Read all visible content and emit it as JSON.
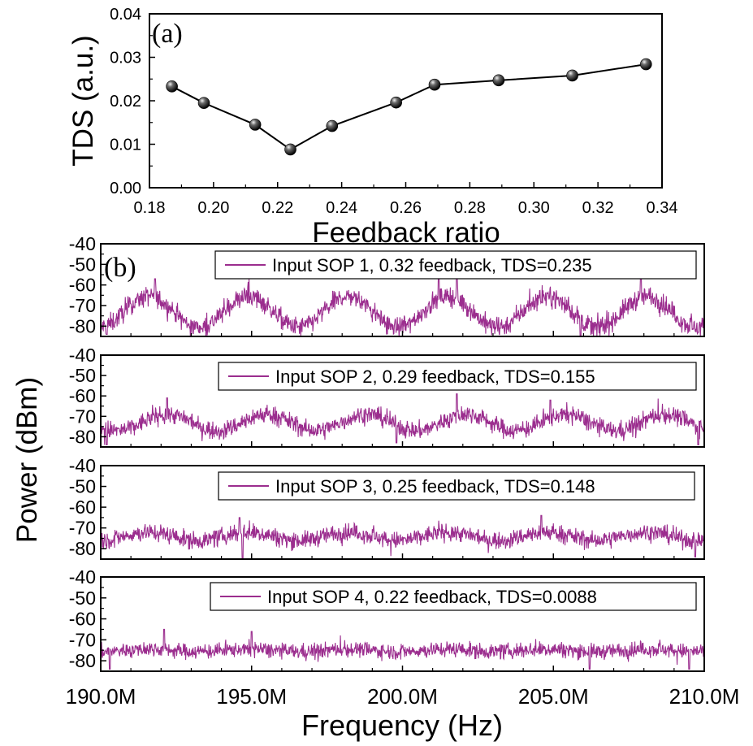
{
  "chart_data": [
    {
      "panel": "(a)",
      "type": "line",
      "xlabel": "Feedback ratio",
      "ylabel": "TDS (a.u.)",
      "xlim": [
        0.18,
        0.34
      ],
      "ylim": [
        0.0,
        0.04
      ],
      "xticks": [
        "0.18",
        "0.20",
        "0.22",
        "0.24",
        "0.26",
        "0.28",
        "0.30",
        "0.32",
        "0.34"
      ],
      "yticks": [
        "0.00",
        "0.01",
        "0.02",
        "0.03",
        "0.04"
      ],
      "marker": "sphere",
      "series": [
        {
          "x": [
            0.187,
            0.197,
            0.213,
            0.224,
            0.237,
            0.257,
            0.269,
            0.289,
            0.312,
            0.335
          ],
          "y": [
            0.0233,
            0.0195,
            0.0145,
            0.0088,
            0.0142,
            0.0196,
            0.0237,
            0.0247,
            0.0258,
            0.0284
          ]
        }
      ]
    },
    {
      "panel": "(b)",
      "type": "line",
      "xlabel": "Frequency (Hz)",
      "ylabel": "Power (dBm)",
      "xlim": [
        190.0,
        210.0
      ],
      "x_unit_suffix": "M",
      "xticks": [
        "190.0M",
        "195.0M",
        "200.0M",
        "205.0M",
        "210.0M"
      ],
      "ylim": [
        -85,
        -40
      ],
      "yticks": [
        "-40",
        "-50",
        "-60",
        "-70",
        "-80"
      ],
      "line_color": "#9b2d8e",
      "subplots": [
        {
          "legend": "Input SOP 1, 0.32 feedback, TDS=0.235",
          "baseline_dbm": -73,
          "ripple_amplitude_db": 7.5,
          "ripple_period_mhz": 3.3,
          "ripple_phase_mhz": 191.6,
          "noise_db": 3.5,
          "notable_peaks": [
            [
              191.8,
              -57
            ],
            [
              201.2,
              -56
            ],
            [
              201.8,
              -56
            ],
            [
              207.9,
              -56
            ]
          ],
          "notable_dips": [
            [
              205.9,
              -85
            ],
            [
              190.2,
              -84
            ],
            [
              209.8,
              -83
            ]
          ]
        },
        {
          "legend": "Input SOP 2, 0.29 feedback, TDS=0.155",
          "baseline_dbm": -73,
          "ripple_amplitude_db": 4,
          "ripple_period_mhz": 3.3,
          "ripple_phase_mhz": 192.2,
          "noise_db": 3.2,
          "notable_peaks": [
            [
              192.2,
              -61
            ],
            [
              201.8,
              -59
            ],
            [
              204.9,
              -62
            ]
          ],
          "notable_dips": [
            [
              190.2,
              -84
            ],
            [
              199.8,
              -83
            ],
            [
              209.8,
              -84
            ]
          ]
        },
        {
          "legend": "Input SOP 3, 0.25 feedback, TDS=0.148",
          "baseline_dbm": -74,
          "ripple_amplitude_db": 2,
          "ripple_period_mhz": 3.3,
          "ripple_phase_mhz": 191.6,
          "noise_db": 3.0,
          "notable_peaks": [
            [
              194.6,
              -65
            ],
            [
              204.6,
              -64
            ]
          ],
          "notable_dips": [
            [
              194.7,
              -85
            ],
            [
              209.7,
              -84
            ]
          ]
        },
        {
          "legend": "Input SOP 4, 0.22 feedback, TDS=0.0088",
          "baseline_dbm": -75,
          "ripple_amplitude_db": 0.6,
          "ripple_period_mhz": 3.3,
          "ripple_phase_mhz": 191.6,
          "noise_db": 2.6,
          "notable_peaks": [
            [
              192.1,
              -65
            ],
            [
              195.0,
              -66
            ]
          ],
          "notable_dips": [
            [
              190.3,
              -84
            ],
            [
              206.2,
              -84
            ],
            [
              209.5,
              -84
            ]
          ]
        }
      ]
    }
  ]
}
